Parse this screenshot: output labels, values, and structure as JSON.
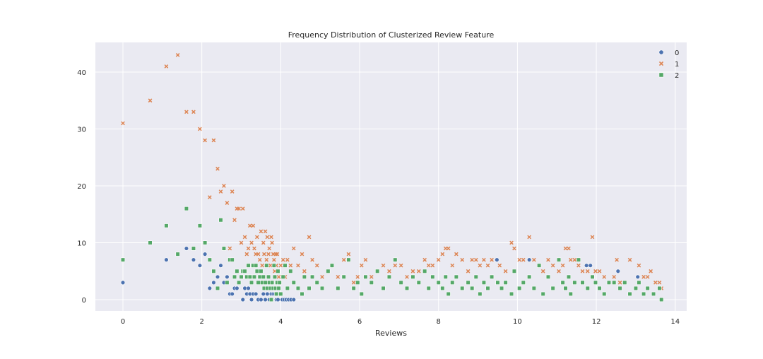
{
  "chart_data": {
    "type": "scatter",
    "title": "Frequency Distribution of Clusterized Review Feature",
    "xlabel": "Reviews",
    "ylabel": "",
    "xlim": [
      -0.7,
      14.3
    ],
    "ylim": [
      -2.2,
      45.2
    ],
    "xticks": [
      "0",
      "2",
      "4",
      "6",
      "8",
      "10",
      "12",
      "14"
    ],
    "yticks": [
      "0",
      "10",
      "20",
      "30",
      "40"
    ],
    "grid": true,
    "legend": {
      "placement": "top-right",
      "entries": [
        "0",
        "1",
        "2"
      ]
    },
    "colors": {
      "0": "#4c72b0",
      "1": "#dd8452",
      "2": "#55a868",
      "background": "#eaeaf2",
      "grid": "#ffffff"
    },
    "markers": {
      "0": "circle",
      "1": "x",
      "2": "square"
    },
    "series": [
      {
        "name": "0",
        "points": [
          [
            0,
            3
          ],
          [
            1.1,
            7
          ],
          [
            1.61,
            9
          ],
          [
            1.79,
            7
          ],
          [
            1.95,
            6
          ],
          [
            2.08,
            8
          ],
          [
            2.2,
            2
          ],
          [
            2.3,
            3
          ],
          [
            2.4,
            4
          ],
          [
            2.48,
            6
          ],
          [
            2.56,
            3
          ],
          [
            2.64,
            4
          ],
          [
            2.71,
            1
          ],
          [
            2.77,
            1
          ],
          [
            2.83,
            2
          ],
          [
            2.89,
            2
          ],
          [
            2.94,
            3
          ],
          [
            3.04,
            0
          ],
          [
            3.09,
            2
          ],
          [
            3.14,
            1
          ],
          [
            3.18,
            2
          ],
          [
            3.22,
            1
          ],
          [
            3.26,
            0
          ],
          [
            3.3,
            1
          ],
          [
            3.37,
            1
          ],
          [
            3.43,
            0
          ],
          [
            3.5,
            0
          ],
          [
            3.56,
            1
          ],
          [
            3.61,
            0
          ],
          [
            3.66,
            1
          ],
          [
            3.71,
            0
          ],
          [
            3.76,
            1
          ],
          [
            3.81,
            1
          ],
          [
            3.85,
            1
          ],
          [
            3.89,
            0
          ],
          [
            3.93,
            0
          ],
          [
            4.0,
            1
          ],
          [
            4.04,
            0
          ],
          [
            4.09,
            0
          ],
          [
            4.14,
            0
          ],
          [
            4.2,
            0
          ],
          [
            4.26,
            0
          ],
          [
            4.33,
            0
          ],
          [
            9.48,
            7
          ],
          [
            10.3,
            7
          ],
          [
            11.75,
            6
          ],
          [
            11.85,
            6
          ],
          [
            12.55,
            5
          ],
          [
            13.05,
            4
          ]
        ]
      },
      {
        "name": "1",
        "points": [
          [
            0,
            31
          ],
          [
            0.69,
            35
          ],
          [
            1.1,
            41
          ],
          [
            1.39,
            43
          ],
          [
            1.61,
            33
          ],
          [
            1.79,
            33
          ],
          [
            1.95,
            30
          ],
          [
            2.08,
            28
          ],
          [
            2.2,
            18
          ],
          [
            2.3,
            28
          ],
          [
            2.4,
            23
          ],
          [
            2.48,
            19
          ],
          [
            2.56,
            20
          ],
          [
            2.64,
            17
          ],
          [
            2.71,
            9
          ],
          [
            2.77,
            19
          ],
          [
            2.83,
            14
          ],
          [
            2.89,
            16
          ],
          [
            2.94,
            16
          ],
          [
            3.0,
            10
          ],
          [
            3.04,
            16
          ],
          [
            3.09,
            11
          ],
          [
            3.14,
            8
          ],
          [
            3.18,
            9
          ],
          [
            3.22,
            13
          ],
          [
            3.26,
            10
          ],
          [
            3.3,
            13
          ],
          [
            3.33,
            9
          ],
          [
            3.37,
            8
          ],
          [
            3.4,
            11
          ],
          [
            3.43,
            8
          ],
          [
            3.47,
            7
          ],
          [
            3.5,
            12
          ],
          [
            3.53,
            6
          ],
          [
            3.56,
            10
          ],
          [
            3.58,
            8
          ],
          [
            3.61,
            12
          ],
          [
            3.64,
            7
          ],
          [
            3.66,
            11
          ],
          [
            3.69,
            8
          ],
          [
            3.71,
            9
          ],
          [
            3.74,
            6
          ],
          [
            3.76,
            11
          ],
          [
            3.78,
            10
          ],
          [
            3.81,
            8
          ],
          [
            3.83,
            7
          ],
          [
            3.85,
            5
          ],
          [
            3.87,
            8
          ],
          [
            3.89,
            6
          ],
          [
            3.91,
            8
          ],
          [
            3.93,
            5
          ],
          [
            3.95,
            4
          ],
          [
            3.97,
            3
          ],
          [
            4.0,
            6
          ],
          [
            4.06,
            7
          ],
          [
            4.11,
            4
          ],
          [
            4.17,
            7
          ],
          [
            4.25,
            6
          ],
          [
            4.33,
            9
          ],
          [
            4.44,
            6
          ],
          [
            4.54,
            8
          ],
          [
            4.6,
            5
          ],
          [
            4.72,
            11
          ],
          [
            4.8,
            7
          ],
          [
            4.92,
            6
          ],
          [
            5.05,
            4
          ],
          [
            5.2,
            5
          ],
          [
            5.3,
            6
          ],
          [
            5.45,
            4
          ],
          [
            5.6,
            7
          ],
          [
            5.72,
            8
          ],
          [
            5.85,
            3
          ],
          [
            5.95,
            4
          ],
          [
            6.05,
            6
          ],
          [
            6.15,
            7
          ],
          [
            6.3,
            4
          ],
          [
            6.45,
            5
          ],
          [
            6.6,
            6
          ],
          [
            6.75,
            5
          ],
          [
            6.9,
            6
          ],
          [
            7.05,
            6
          ],
          [
            7.2,
            4
          ],
          [
            7.35,
            5
          ],
          [
            7.5,
            5
          ],
          [
            7.65,
            7
          ],
          [
            7.75,
            6
          ],
          [
            7.85,
            6
          ],
          [
            8.0,
            7
          ],
          [
            8.1,
            8
          ],
          [
            8.18,
            9
          ],
          [
            8.25,
            9
          ],
          [
            8.35,
            6
          ],
          [
            8.45,
            8
          ],
          [
            8.6,
            7
          ],
          [
            8.75,
            5
          ],
          [
            8.85,
            7
          ],
          [
            8.95,
            7
          ],
          [
            9.05,
            6
          ],
          [
            9.15,
            7
          ],
          [
            9.25,
            6
          ],
          [
            9.35,
            7
          ],
          [
            9.55,
            6
          ],
          [
            9.7,
            5
          ],
          [
            9.85,
            10
          ],
          [
            9.92,
            9
          ],
          [
            10.05,
            7
          ],
          [
            10.15,
            7
          ],
          [
            10.3,
            11
          ],
          [
            10.42,
            7
          ],
          [
            10.55,
            6
          ],
          [
            10.65,
            5
          ],
          [
            10.78,
            7
          ],
          [
            10.9,
            6
          ],
          [
            11.05,
            5
          ],
          [
            11.15,
            6
          ],
          [
            11.22,
            9
          ],
          [
            11.3,
            9
          ],
          [
            11.35,
            7
          ],
          [
            11.45,
            7
          ],
          [
            11.55,
            6
          ],
          [
            11.65,
            5
          ],
          [
            11.78,
            5
          ],
          [
            11.9,
            11
          ],
          [
            11.98,
            5
          ],
          [
            12.08,
            5
          ],
          [
            12.2,
            4
          ],
          [
            12.32,
            3
          ],
          [
            12.45,
            4
          ],
          [
            12.52,
            7
          ],
          [
            12.6,
            3
          ],
          [
            12.72,
            3
          ],
          [
            12.85,
            7
          ],
          [
            13.0,
            2
          ],
          [
            13.08,
            6
          ],
          [
            13.2,
            4
          ],
          [
            13.3,
            4
          ],
          [
            13.38,
            5
          ],
          [
            13.5,
            3
          ],
          [
            13.6,
            3
          ],
          [
            13.65,
            2
          ]
        ]
      },
      {
        "name": "2",
        "points": [
          [
            0,
            7
          ],
          [
            0.69,
            10
          ],
          [
            1.1,
            13
          ],
          [
            1.39,
            8
          ],
          [
            1.61,
            16
          ],
          [
            1.79,
            9
          ],
          [
            1.95,
            13
          ],
          [
            2.08,
            10
          ],
          [
            2.2,
            7
          ],
          [
            2.3,
            5
          ],
          [
            2.4,
            2
          ],
          [
            2.48,
            14
          ],
          [
            2.56,
            9
          ],
          [
            2.64,
            3
          ],
          [
            2.71,
            7
          ],
          [
            2.77,
            7
          ],
          [
            2.83,
            4
          ],
          [
            2.89,
            5
          ],
          [
            2.94,
            3
          ],
          [
            3.0,
            4
          ],
          [
            3.04,
            5
          ],
          [
            3.09,
            5
          ],
          [
            3.14,
            4
          ],
          [
            3.18,
            6
          ],
          [
            3.22,
            4
          ],
          [
            3.26,
            3
          ],
          [
            3.3,
            6
          ],
          [
            3.33,
            4
          ],
          [
            3.37,
            6
          ],
          [
            3.4,
            5
          ],
          [
            3.43,
            3
          ],
          [
            3.47,
            4
          ],
          [
            3.5,
            5
          ],
          [
            3.53,
            3
          ],
          [
            3.56,
            4
          ],
          [
            3.58,
            2
          ],
          [
            3.61,
            3
          ],
          [
            3.64,
            6
          ],
          [
            3.66,
            2
          ],
          [
            3.69,
            4
          ],
          [
            3.71,
            3
          ],
          [
            3.74,
            2
          ],
          [
            3.76,
            0
          ],
          [
            3.78,
            3
          ],
          [
            3.81,
            2
          ],
          [
            3.83,
            6
          ],
          [
            3.85,
            4
          ],
          [
            3.87,
            2
          ],
          [
            3.89,
            1
          ],
          [
            3.91,
            3
          ],
          [
            3.93,
            5
          ],
          [
            3.95,
            2
          ],
          [
            3.97,
            3
          ],
          [
            4.0,
            1
          ],
          [
            4.06,
            4
          ],
          [
            4.11,
            6
          ],
          [
            4.17,
            2
          ],
          [
            4.25,
            5
          ],
          [
            4.33,
            3
          ],
          [
            4.44,
            2
          ],
          [
            4.54,
            1
          ],
          [
            4.6,
            4
          ],
          [
            4.72,
            2
          ],
          [
            4.8,
            4
          ],
          [
            4.92,
            3
          ],
          [
            5.05,
            2
          ],
          [
            5.2,
            5
          ],
          [
            5.3,
            6
          ],
          [
            5.45,
            2
          ],
          [
            5.6,
            4
          ],
          [
            5.72,
            7
          ],
          [
            5.85,
            2
          ],
          [
            5.95,
            3
          ],
          [
            6.05,
            1
          ],
          [
            6.15,
            4
          ],
          [
            6.3,
            3
          ],
          [
            6.45,
            5
          ],
          [
            6.6,
            2
          ],
          [
            6.75,
            4
          ],
          [
            6.9,
            7
          ],
          [
            7.05,
            3
          ],
          [
            7.2,
            2
          ],
          [
            7.35,
            4
          ],
          [
            7.5,
            3
          ],
          [
            7.65,
            5
          ],
          [
            7.75,
            2
          ],
          [
            7.85,
            4
          ],
          [
            8.0,
            3
          ],
          [
            8.1,
            2
          ],
          [
            8.18,
            4
          ],
          [
            8.25,
            1
          ],
          [
            8.35,
            3
          ],
          [
            8.45,
            4
          ],
          [
            8.6,
            2
          ],
          [
            8.75,
            3
          ],
          [
            8.85,
            2
          ],
          [
            8.95,
            4
          ],
          [
            9.05,
            1
          ],
          [
            9.15,
            3
          ],
          [
            9.25,
            2
          ],
          [
            9.35,
            4
          ],
          [
            9.5,
            3
          ],
          [
            9.6,
            2
          ],
          [
            9.7,
            3
          ],
          [
            9.85,
            1
          ],
          [
            9.92,
            5
          ],
          [
            10.05,
            2
          ],
          [
            10.15,
            3
          ],
          [
            10.3,
            4
          ],
          [
            10.42,
            2
          ],
          [
            10.55,
            6
          ],
          [
            10.65,
            1
          ],
          [
            10.78,
            4
          ],
          [
            10.9,
            2
          ],
          [
            11.05,
            7
          ],
          [
            11.15,
            3
          ],
          [
            11.22,
            2
          ],
          [
            11.3,
            4
          ],
          [
            11.35,
            1
          ],
          [
            11.45,
            3
          ],
          [
            11.55,
            7
          ],
          [
            11.65,
            3
          ],
          [
            11.78,
            2
          ],
          [
            11.9,
            4
          ],
          [
            11.98,
            3
          ],
          [
            12.08,
            2
          ],
          [
            12.2,
            1
          ],
          [
            12.32,
            3
          ],
          [
            12.45,
            3
          ],
          [
            12.6,
            2
          ],
          [
            12.72,
            3
          ],
          [
            12.85,
            1
          ],
          [
            13.0,
            2
          ],
          [
            13.08,
            3
          ],
          [
            13.2,
            1
          ],
          [
            13.3,
            2
          ],
          [
            13.45,
            1
          ],
          [
            13.6,
            2
          ],
          [
            13.65,
            0
          ]
        ]
      }
    ]
  }
}
